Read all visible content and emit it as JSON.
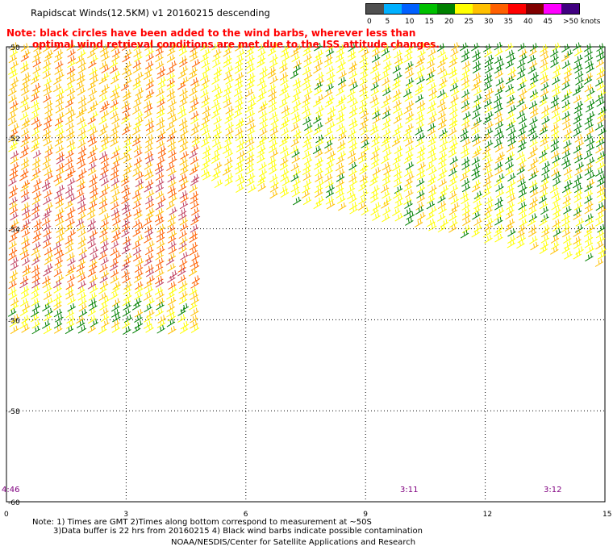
{
  "title": "Rapidscat Winds(12.5KM) v1 20160215 descending",
  "note_line1": "Note: black circles have been added to the wind barbs, wherever less than",
  "note_line2": "optimal wind retrieval conditions are met due to the ISS attitude changes.",
  "legend": {
    "labels": [
      "0",
      "5",
      "10",
      "15",
      "20",
      "25",
      "30",
      "35",
      "40",
      "45",
      ">50 knots"
    ],
    "colors": [
      "#505050",
      "#00b0ff",
      "#0060ff",
      "#00c000",
      "#008000",
      "#ffff00",
      "#ffc000",
      "#ff6000",
      "#ff0000",
      "#800000",
      "#ff00ff",
      "#400080"
    ]
  },
  "axes": {
    "x_ticks": [
      "0",
      "3",
      "6",
      "9",
      "12",
      "15"
    ],
    "y_ticks": [
      "-50",
      "-52",
      "-54",
      "-56",
      "-58",
      "-60"
    ],
    "x_range": [
      0,
      15
    ],
    "y_range": [
      -60,
      -50
    ]
  },
  "pass_times": [
    "4:46",
    "3:11",
    "3:12"
  ],
  "footer": {
    "line1": "Note: 1) Times are GMT 2)Times along bottom correspond to measurement at ~50S",
    "line2": "3)Data buffer is 22 hrs from 20160215 4) Black wind barbs indicate possible contamination",
    "line3": "NOAA/NESDIS/Center for Satellite Applications and Research"
  }
}
